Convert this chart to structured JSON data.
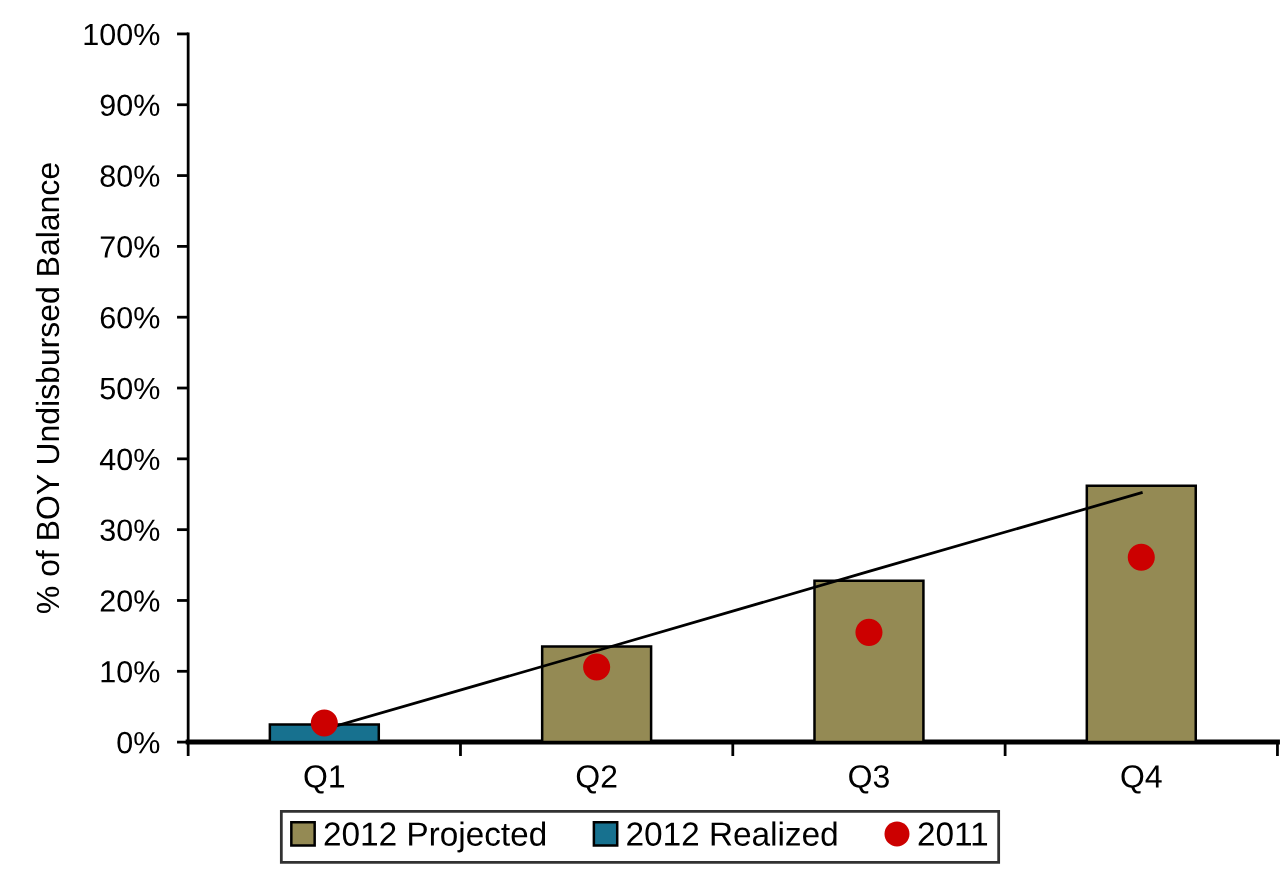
{
  "chart_data": {
    "type": "bar",
    "ylabel": "% of BOY Undisbursed Balance",
    "categories": [
      "Q1",
      "Q2",
      "Q3",
      "Q4"
    ],
    "series": [
      {
        "name": "2012 Projected",
        "color": "#948a54",
        "values": [
          null,
          13.5,
          22.8,
          36.2
        ]
      },
      {
        "name": "2012 Realized",
        "color": "#17718f",
        "values": [
          2.5,
          null,
          null,
          null
        ]
      },
      {
        "type": "line",
        "color": "#000000",
        "values": [
          1.8,
          12.9,
          24.1,
          35.2
        ]
      },
      {
        "name": "2011",
        "type": "scatter",
        "color": "#cc0000",
        "marker": "circle",
        "values": [
          2.7,
          10.6,
          15.5,
          26.1
        ]
      }
    ],
    "ylim": [
      0,
      100
    ],
    "yticks": [
      {
        "value": 0,
        "label": "0%"
      },
      {
        "value": 10,
        "label": "10%"
      },
      {
        "value": 20,
        "label": "20%"
      },
      {
        "value": 30,
        "label": "30%"
      },
      {
        "value": 40,
        "label": "40%"
      },
      {
        "value": 50,
        "label": "50%"
      },
      {
        "value": 60,
        "label": "60%"
      },
      {
        "value": 70,
        "label": "70%"
      },
      {
        "value": 80,
        "label": "80%"
      },
      {
        "value": 90,
        "label": "90%"
      },
      {
        "value": 100,
        "label": "100%"
      }
    ],
    "grid": false,
    "legend": "bottom"
  }
}
